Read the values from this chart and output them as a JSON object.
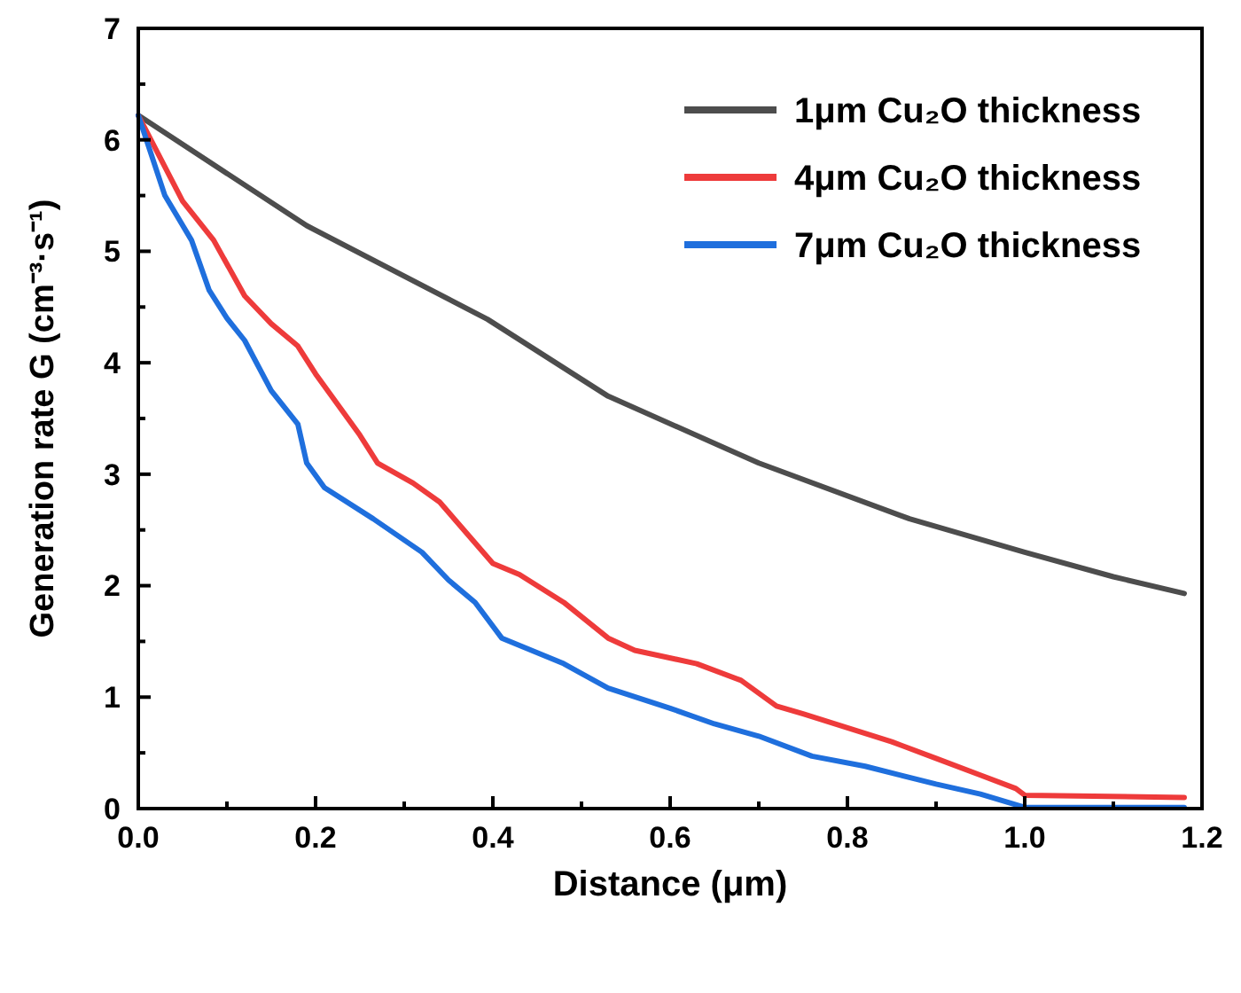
{
  "chart_data": {
    "type": "line",
    "xlabel": "Distance (μm)",
    "ylabel": "Generation rate G (cm⁻³·s⁻¹)",
    "xlim": [
      0,
      1.2
    ],
    "ylim": [
      0,
      7
    ],
    "xticks": [
      {
        "value": 0,
        "label": "0.0"
      },
      {
        "value": 0.1,
        "label": null
      },
      {
        "value": 0.2,
        "label": "0.2"
      },
      {
        "value": 0.3,
        "label": null
      },
      {
        "value": 0.4,
        "label": "0.4"
      },
      {
        "value": 0.5,
        "label": null
      },
      {
        "value": 0.6,
        "label": "0.6"
      },
      {
        "value": 0.7,
        "label": null
      },
      {
        "value": 0.8,
        "label": "0.8"
      },
      {
        "value": 0.9,
        "label": null
      },
      {
        "value": 1,
        "label": "1.0"
      },
      {
        "value": 1.1,
        "label": null
      },
      {
        "value": 1.2,
        "label": "1.2"
      }
    ],
    "yticks": [
      0,
      {
        "value": 0.5,
        "label": null
      },
      1,
      {
        "value": 1.5,
        "label": null
      },
      2,
      {
        "value": 2.5,
        "label": null
      },
      3,
      {
        "value": 3.5,
        "label": null
      },
      4,
      {
        "value": 4.5,
        "label": null
      },
      5,
      {
        "value": 5.5,
        "label": null
      },
      6,
      {
        "value": 6.5,
        "label": null
      },
      7
    ],
    "legend": "top right",
    "grid": false,
    "marker": "none",
    "line_style": "solid",
    "series": [
      {
        "name": "1μm Cu₂O thickness",
        "color": "#4d4d4d",
        "x": [
          0,
          0.19,
          0.394,
          0.53,
          0.7,
          0.87,
          1.0,
          1.1,
          1.18
        ],
        "values": [
          6.22,
          5.23,
          4.39,
          3.7,
          3.1,
          2.6,
          2.3,
          2.08,
          1.93
        ]
      },
      {
        "name": "4μm Cu₂O thickness",
        "color": "#ee3b3b",
        "x": [
          0,
          0.05,
          0.085,
          0.12,
          0.15,
          0.18,
          0.2,
          0.25,
          0.27,
          0.31,
          0.34,
          0.4,
          0.43,
          0.48,
          0.53,
          0.56,
          0.63,
          0.68,
          0.72,
          0.75,
          0.85,
          0.9,
          0.95,
          0.99,
          1.0,
          1.18
        ],
        "values": [
          6.22,
          5.45,
          5.1,
          4.6,
          4.35,
          4.15,
          3.9,
          3.35,
          3.1,
          2.92,
          2.75,
          2.2,
          2.1,
          1.85,
          1.53,
          1.42,
          1.3,
          1.15,
          0.92,
          0.85,
          0.6,
          0.45,
          0.3,
          0.18,
          0.12,
          0.1
        ]
      },
      {
        "name": "7μm Cu₂O thickness",
        "color": "#1f6fdd",
        "x": [
          0,
          0.03,
          0.06,
          0.08,
          0.1,
          0.12,
          0.15,
          0.18,
          0.19,
          0.21,
          0.265,
          0.32,
          0.35,
          0.38,
          0.41,
          0.48,
          0.53,
          0.6,
          0.65,
          0.7,
          0.76,
          0.82,
          0.86,
          0.9,
          0.95,
          1.0,
          1.18
        ],
        "values": [
          6.22,
          5.5,
          5.1,
          4.65,
          4.4,
          4.2,
          3.75,
          3.45,
          3.1,
          2.88,
          2.6,
          2.3,
          2.05,
          1.85,
          1.53,
          1.3,
          1.08,
          0.9,
          0.76,
          0.65,
          0.47,
          0.38,
          0.3,
          0.22,
          0.13,
          0.01,
          0.01
        ]
      }
    ]
  }
}
